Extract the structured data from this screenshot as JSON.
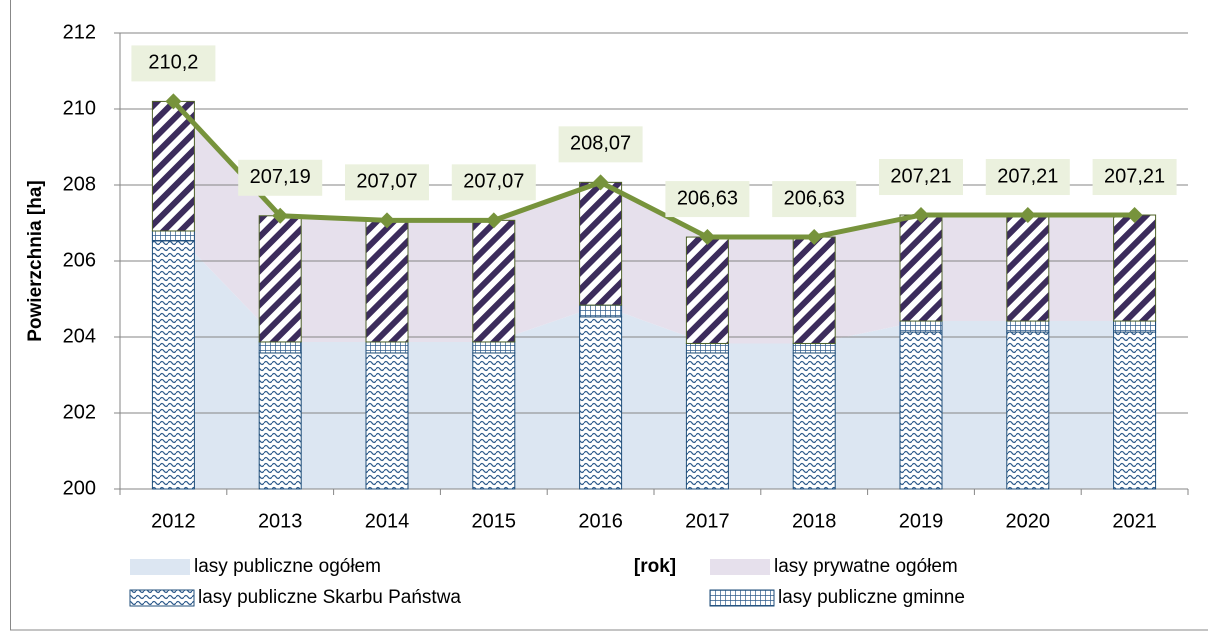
{
  "chart_data": {
    "type": "combo",
    "ylabel": "Powierzchnia [ha]",
    "xlabel": "[rok]",
    "categories": [
      "2012",
      "2013",
      "2014",
      "2015",
      "2016",
      "2017",
      "2018",
      "2019",
      "2020",
      "2021"
    ],
    "ylim": [
      200,
      212
    ],
    "yticks": [
      200,
      202,
      204,
      206,
      208,
      210,
      212
    ],
    "grid": true,
    "series": [
      {
        "name": "lasy publiczne ogółem",
        "kind": "area",
        "color": "#dce6f2",
        "values": [
          206.79,
          203.87,
          203.87,
          203.87,
          204.84,
          203.83,
          203.83,
          204.42,
          204.42,
          204.42
        ]
      },
      {
        "name": "lasy prywatne ogółem",
        "kind": "area",
        "color": "#e6e0ec",
        "values": [
          3.41,
          3.32,
          3.2,
          3.2,
          3.23,
          2.8,
          2.8,
          2.79,
          2.79,
          2.79
        ]
      },
      {
        "name": "lasy publiczne Skarbu Państwa",
        "kind": "bar",
        "pattern": "waves",
        "color": "#1f4e79",
        "values": [
          206.53,
          203.58,
          203.58,
          203.58,
          204.53,
          203.58,
          203.58,
          204.13,
          204.13,
          204.13
        ]
      },
      {
        "name": "lasy publiczne gminne",
        "kind": "bar",
        "pattern": "grid",
        "color": "#1f4e79",
        "values": [
          0.26,
          0.29,
          0.29,
          0.29,
          0.31,
          0.25,
          0.25,
          0.29,
          0.29,
          0.29
        ]
      },
      {
        "kind": "bar",
        "pattern": "stripes",
        "color": "#3c2c5c",
        "values": [
          3.41,
          3.32,
          3.2,
          3.2,
          3.23,
          2.8,
          2.8,
          2.79,
          2.79,
          2.79
        ]
      },
      {
        "kind": "line",
        "color": "#77933c",
        "values": [
          210.2,
          207.19,
          207.07,
          207.07,
          208.07,
          206.63,
          206.63,
          207.21,
          207.21,
          207.21
        ],
        "value_labels": [
          "210,2",
          "207,19",
          "207,07",
          "207,07",
          "208,07",
          "206,63",
          "206,63",
          "207,21",
          "207,21",
          "207,21"
        ]
      }
    ]
  }
}
